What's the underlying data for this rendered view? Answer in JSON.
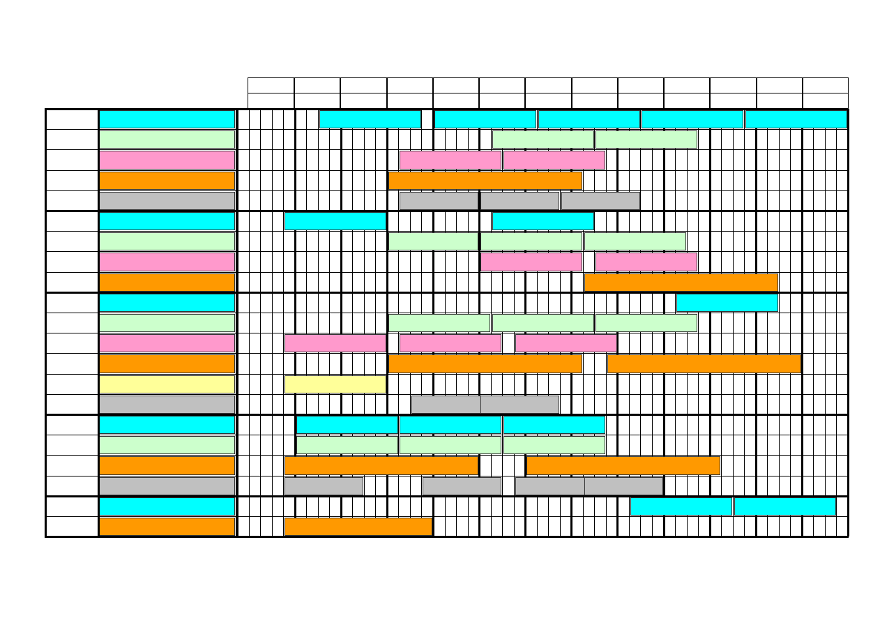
{
  "sheet": {
    "title": "",
    "palette": {
      "cyan": "#00ffff",
      "green": "#ccffcc",
      "pink": "#ff99cc",
      "orange": "#ff9900",
      "gray": "#c0c0c0",
      "yellow": "#ffff99",
      "grid": "#000000",
      "background": "#ffffff"
    },
    "groups": [
      {
        "rows": [
          {
            "category": "",
            "label": "",
            "color": "cyan",
            "bars": [
              [
                8,
                16
              ],
              [
                18,
                26
              ],
              [
                27,
                35
              ],
              [
                36,
                44
              ],
              [
                45,
                53
              ]
            ]
          },
          {
            "category": "",
            "label": "",
            "color": "green",
            "bars": [
              [
                23,
                31
              ],
              [
                32,
                40
              ]
            ]
          },
          {
            "category": "",
            "label": "",
            "color": "pink",
            "bars": [
              [
                15,
                23
              ],
              [
                24,
                32
              ]
            ]
          },
          {
            "category": "",
            "label": "",
            "color": "orange",
            "bars": [
              [
                14,
                30
              ]
            ]
          },
          {
            "category": "",
            "label": "",
            "color": "gray",
            "bars": [
              [
                15,
                21
              ],
              [
                22,
                28
              ],
              [
                29,
                35
              ]
            ]
          }
        ]
      },
      {
        "rows": [
          {
            "category": "",
            "label": "",
            "color": "cyan",
            "bars": [
              [
                5,
                13
              ],
              [
                23,
                31
              ]
            ]
          },
          {
            "category": "",
            "label": "",
            "color": "green",
            "bars": [
              [
                14,
                21
              ],
              [
                22,
                30
              ],
              [
                31,
                39
              ]
            ]
          },
          {
            "category": "",
            "label": "",
            "color": "pink",
            "bars": [
              [
                22,
                30
              ],
              [
                32,
                40
              ]
            ]
          },
          {
            "category": "",
            "label": "",
            "color": "orange",
            "bars": [
              [
                31,
                47
              ]
            ]
          }
        ]
      },
      {
        "rows": [
          {
            "category": "",
            "label": "",
            "color": "cyan",
            "bars": [
              [
                39,
                47
              ]
            ]
          },
          {
            "category": "",
            "label": "",
            "color": "green",
            "bars": [
              [
                14,
                22
              ],
              [
                23,
                31
              ],
              [
                32,
                40
              ]
            ]
          },
          {
            "category": "",
            "label": "",
            "color": "pink",
            "bars": [
              [
                5,
                13
              ],
              [
                15,
                23
              ],
              [
                25,
                33
              ]
            ]
          },
          {
            "category": "",
            "label": "",
            "color": "orange",
            "bars": [
              [
                14,
                30
              ],
              [
                33,
                49
              ]
            ]
          },
          {
            "category": "",
            "label": "",
            "color": "yellow",
            "bars": [
              [
                5,
                13
              ]
            ]
          },
          {
            "category": "",
            "label": "",
            "color": "gray",
            "bars": [
              [
                16,
                22
              ],
              [
                22,
                28
              ]
            ]
          }
        ]
      },
      {
        "rows": [
          {
            "category": "",
            "label": "",
            "color": "cyan",
            "bars": [
              [
                6,
                14
              ],
              [
                15,
                23
              ],
              [
                24,
                32
              ]
            ]
          },
          {
            "category": "",
            "label": "",
            "color": "green",
            "bars": [
              [
                6,
                14
              ],
              [
                15,
                23
              ],
              [
                24,
                32
              ]
            ]
          },
          {
            "category": "",
            "label": "",
            "color": "orange",
            "bars": [
              [
                5,
                21
              ],
              [
                26,
                42
              ]
            ]
          },
          {
            "category": "",
            "label": "",
            "color": "gray",
            "bars": [
              [
                5,
                11
              ],
              [
                17,
                23
              ],
              [
                25,
                31
              ],
              [
                31,
                37
              ]
            ]
          }
        ]
      },
      {
        "rows": [
          {
            "category": "",
            "label": "",
            "color": "cyan",
            "bars": [
              [
                35,
                43
              ],
              [
                44,
                52
              ]
            ]
          },
          {
            "category": "",
            "label": "",
            "color": "orange",
            "bars": [
              [
                5,
                17
              ]
            ]
          }
        ]
      }
    ]
  }
}
